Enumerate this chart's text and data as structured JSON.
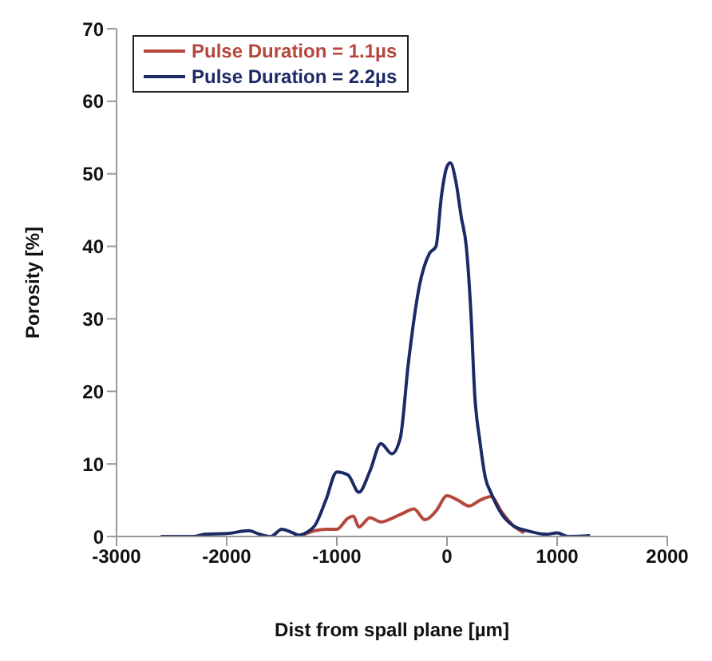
{
  "chart_data": {
    "type": "line",
    "xlabel": "Dist from spall plane [µm]",
    "ylabel": "Porosity [%]",
    "xlim": [
      -3000,
      2000
    ],
    "xticks": [
      -3000,
      -2000,
      -1000,
      0,
      1000,
      2000
    ],
    "ylim": [
      0,
      70
    ],
    "yticks": [
      0,
      10,
      20,
      30,
      40,
      50,
      60,
      70
    ],
    "grid": false,
    "legend": "top left",
    "marker": "none",
    "line_style": "solid",
    "series": [
      {
        "name": "Pulse Duration = 1.1µs",
        "color": "#b5473c",
        "x": [
          -1300,
          -1200,
          -1100,
          -1000,
          -900,
          -850,
          -800,
          -700,
          -600,
          -500,
          -400,
          -300,
          -200,
          -100,
          0,
          100,
          200,
          300,
          400,
          500,
          600,
          700
        ],
        "values": [
          0.3,
          0.8,
          1,
          1,
          2.5,
          2.8,
          1.3,
          2.6,
          2,
          2.5,
          3.2,
          3.8,
          2.3,
          3.5,
          5.6,
          5,
          4.2,
          5,
          5.5,
          3.3,
          1.5,
          0.5
        ]
      },
      {
        "name": "Pulse Duration = 2.2µs",
        "color": "#1c2a66",
        "x": [
          -2600,
          -2300,
          -2200,
          -2000,
          -1800,
          -1700,
          -1600,
          -1500,
          -1400,
          -1350,
          -1250,
          -1200,
          -1100,
          -1000,
          -900,
          -800,
          -700,
          -600,
          -500,
          -425,
          -350,
          -250,
          -160,
          -100,
          -50,
          0,
          30,
          80,
          130,
          175,
          220,
          250,
          300,
          350,
          400,
          500,
          600,
          750,
          900,
          1000,
          1100,
          1300
        ],
        "values": [
          0,
          0,
          0.3,
          0.4,
          0.8,
          0.3,
          0,
          1,
          0.5,
          0.2,
          0.8,
          1.5,
          5,
          8.9,
          8.5,
          6.1,
          9,
          12.8,
          11.4,
          13.5,
          24,
          34.6,
          39,
          40,
          47,
          51,
          51.5,
          49,
          44,
          40,
          30,
          20,
          13,
          8,
          6,
          3,
          1.5,
          0.7,
          0.3,
          0.5,
          0,
          0.1
        ]
      }
    ]
  }
}
